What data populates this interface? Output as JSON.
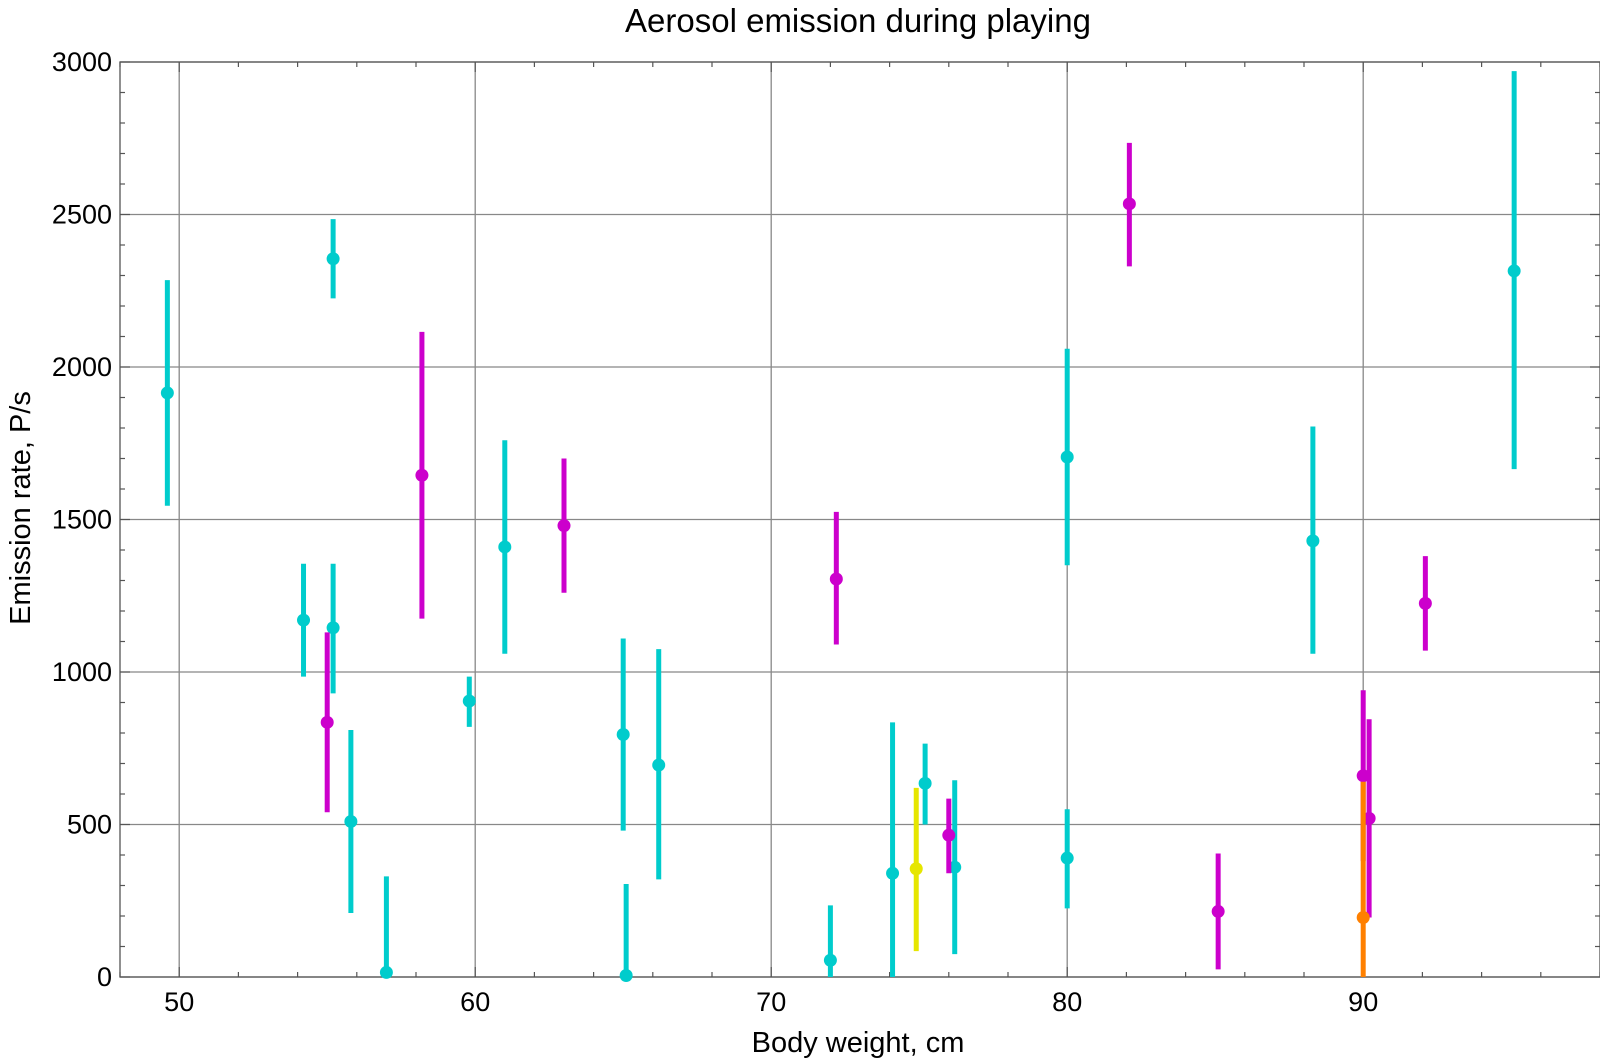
{
  "chart_data": {
    "type": "scatter",
    "title": "Aerosol emission during playing",
    "xlabel": "Body weight,  cm",
    "ylabel": "Emission rate,  P/s",
    "xlim": [
      48,
      98
    ],
    "ylim": [
      0,
      3000
    ],
    "x_ticks": [
      50,
      60,
      70,
      80,
      90
    ],
    "y_ticks": [
      0,
      500,
      1000,
      1500,
      2000,
      2500,
      3000
    ],
    "x_minor_step": 2,
    "y_minor_step": 100,
    "grid": true,
    "error_bars": true,
    "series": [
      {
        "color": "#00cccc",
        "points": [
          {
            "x": 49.6,
            "y": 1915,
            "low": 1545,
            "high": 2285
          },
          {
            "x": 54.2,
            "y": 1170,
            "low": 985,
            "high": 1355
          },
          {
            "x": 55.2,
            "y": 2355,
            "low": 2225,
            "high": 2485
          },
          {
            "x": 55.2,
            "y": 1145,
            "low": 930,
            "high": 1355
          },
          {
            "x": 55.8,
            "y": 510,
            "low": 210,
            "high": 810
          },
          {
            "x": 57.0,
            "y": 15,
            "low": 0,
            "high": 330
          },
          {
            "x": 59.8,
            "y": 905,
            "low": 820,
            "high": 985
          },
          {
            "x": 61.0,
            "y": 1410,
            "low": 1060,
            "high": 1760
          },
          {
            "x": 65.0,
            "y": 795,
            "low": 480,
            "high": 1110
          },
          {
            "x": 65.1,
            "y": 5,
            "low": 0,
            "high": 305
          },
          {
            "x": 66.2,
            "y": 695,
            "low": 320,
            "high": 1075
          },
          {
            "x": 72.0,
            "y": 55,
            "low": 0,
            "high": 235
          },
          {
            "x": 74.1,
            "y": 340,
            "low": 0,
            "high": 835
          },
          {
            "x": 75.2,
            "y": 635,
            "low": 500,
            "high": 765
          },
          {
            "x": 76.2,
            "y": 360,
            "low": 75,
            "high": 645
          },
          {
            "x": 80.0,
            "y": 1705,
            "low": 1350,
            "high": 2060
          },
          {
            "x": 80.0,
            "y": 390,
            "low": 225,
            "high": 550
          },
          {
            "x": 88.3,
            "y": 1430,
            "low": 1060,
            "high": 1805
          },
          {
            "x": 95.1,
            "y": 2315,
            "low": 1665,
            "high": 2970
          }
        ]
      },
      {
        "color": "#cc00cc",
        "points": [
          {
            "x": 55.0,
            "y": 835,
            "low": 540,
            "high": 1130
          },
          {
            "x": 58.2,
            "y": 1645,
            "low": 1175,
            "high": 2115
          },
          {
            "x": 63.0,
            "y": 1480,
            "low": 1260,
            "high": 1700
          },
          {
            "x": 72.2,
            "y": 1305,
            "low": 1090,
            "high": 1525
          },
          {
            "x": 76.0,
            "y": 465,
            "low": 340,
            "high": 585
          },
          {
            "x": 82.1,
            "y": 2535,
            "low": 2330,
            "high": 2735
          },
          {
            "x": 85.1,
            "y": 215,
            "low": 25,
            "high": 405
          },
          {
            "x": 90.0,
            "y": 660,
            "low": 380,
            "high": 940
          },
          {
            "x": 90.2,
            "y": 520,
            "low": 195,
            "high": 845
          },
          {
            "x": 92.1,
            "y": 1225,
            "low": 1070,
            "high": 1380
          }
        ]
      },
      {
        "color": "#e6e600",
        "points": [
          {
            "x": 74.9,
            "y": 355,
            "low": 85,
            "high": 620
          }
        ]
      },
      {
        "color": "#ff8000",
        "points": [
          {
            "x": 90.0,
            "y": 195,
            "low": 0,
            "high": 640
          }
        ]
      }
    ]
  }
}
